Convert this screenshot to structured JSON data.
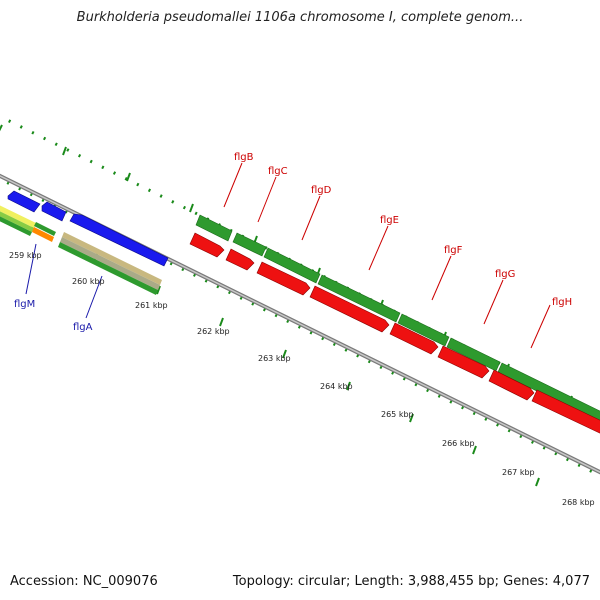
{
  "header": {
    "title": "Burkholderia pseudomallei 1106a chromosome I, complete genom..."
  },
  "footer": {
    "accession": "Accession: NC_009076",
    "summary": "Topology: circular; Length: 3,988,455 bp; Genes: 4,077"
  },
  "colors": {
    "forward_gene": "#2e9a2e",
    "reverse_gene": "#ee1111",
    "blue_gene": "#1a1aee",
    "label_above": "#cc0000",
    "label_below": "#1a1aaa",
    "tick": "#1a8a1a",
    "backbone": "#888888"
  },
  "kbp_labels": [
    {
      "text": "259 kbp",
      "kbp": 259
    },
    {
      "text": "260 kbp",
      "kbp": 260
    },
    {
      "text": "261 kbp",
      "kbp": 261
    },
    {
      "text": "262 kbp",
      "kbp": 262
    },
    {
      "text": "263 kbp",
      "kbp": 263
    },
    {
      "text": "264 kbp",
      "kbp": 264
    },
    {
      "text": "265 kbp",
      "kbp": 265
    },
    {
      "text": "266 kbp",
      "kbp": 266
    },
    {
      "text": "267 kbp",
      "kbp": 267
    },
    {
      "text": "268 kbp",
      "kbp": 268
    }
  ],
  "gene_labels_above": [
    "flgB",
    "flgC",
    "flgD",
    "flgE",
    "flgF",
    "flgG",
    "flgH"
  ],
  "gene_labels_below": [
    "flgM",
    "flgA"
  ]
}
